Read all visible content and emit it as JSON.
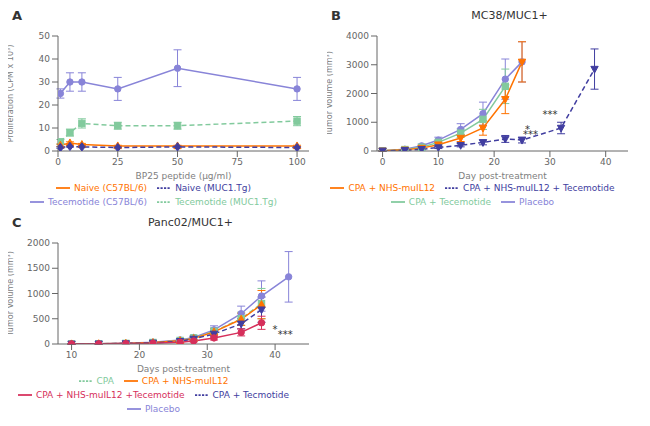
{
  "chart_data": [
    {
      "type": "line",
      "annotations": [
        {
          "text": "A"
        }
      ],
      "xlabel": "BP25 peptide (μg/ml)",
      "ylabel": "Proliferation (CPM x 10³)",
      "xlim": [
        0,
        105
      ],
      "ylim": [
        0,
        50
      ],
      "xticks": [
        0,
        25,
        50,
        75,
        100
      ],
      "yticks": [
        0,
        10,
        20,
        30,
        40,
        50
      ],
      "grid": false,
      "legend": "bottom",
      "series": [
        {
          "name": "Tecemotide (C57BL/6)",
          "color": "#8884d8",
          "marker": "circle",
          "line_style": "solid",
          "x": [
            1,
            5,
            10,
            25,
            50,
            100
          ],
          "values": [
            25,
            30,
            30,
            27,
            36,
            27
          ],
          "yerr": [
            2,
            4,
            4,
            5,
            8,
            5
          ]
        },
        {
          "name": "Tecemotide (MUC1.Tg)",
          "color": "#82ca9d",
          "marker": "square",
          "line_style": "dashed",
          "x": [
            1,
            5,
            10,
            25,
            50,
            100
          ],
          "values": [
            4,
            8,
            12,
            11,
            11,
            13
          ],
          "yerr": [
            1,
            1.5,
            2,
            1.5,
            1.5,
            2
          ]
        },
        {
          "name": "Naive (C57BL/6)",
          "color": "#ff7300",
          "marker": "triangle",
          "line_style": "solid",
          "x": [
            1,
            5,
            10,
            25,
            50,
            100
          ],
          "values": [
            2.5,
            3.5,
            2.8,
            2.2,
            2.2,
            2.2
          ],
          "yerr": [
            0.5,
            0.5,
            0.5,
            0.3,
            0.3,
            0.3
          ]
        },
        {
          "name": "Naive (MUC1.Tg)",
          "color": "#413ea0",
          "marker": "diamond",
          "line_style": "dashed",
          "x": [
            1,
            5,
            10,
            25,
            50,
            100
          ],
          "values": [
            1.5,
            2,
            1.8,
            1.5,
            1.8,
            1.5
          ],
          "yerr": [
            0.3,
            0.3,
            0.3,
            0.2,
            0.3,
            0.3
          ]
        }
      ]
    },
    {
      "type": "line",
      "title": "MC38/MUC1+",
      "annotations": [
        {
          "text": "B"
        },
        {
          "text": "*",
          "x": 26,
          "y": 560
        },
        {
          "text": "***",
          "x": 26.5,
          "y": 410
        },
        {
          "text": "***",
          "x": 30,
          "y": 1080
        }
      ],
      "xlabel": "Day post-treatment",
      "ylabel": "Tumor Volume (mm³)",
      "xlim": [
        -1,
        44
      ],
      "ylim": [
        0,
        4000
      ],
      "xticks": [
        0,
        10,
        20,
        30,
        40
      ],
      "yticks": [
        0,
        1000,
        2000,
        3000,
        4000
      ],
      "grid": false,
      "legend": "bottom",
      "series": [
        {
          "name": "Placebo",
          "color": "#8884d8",
          "marker": "circle",
          "line_style": "solid",
          "x": [
            0,
            4,
            7,
            10,
            14,
            18,
            22,
            25,
            32
          ],
          "values": [
            5,
            60,
            180,
            380,
            750,
            1300,
            2500,
            3100,
            null
          ],
          "yerr": [
            3,
            30,
            60,
            100,
            200,
            400,
            700,
            700,
            null
          ]
        },
        {
          "name": "CPA + Tecemotide",
          "color": "#82ca9d",
          "marker": "square",
          "line_style": "solid",
          "x": [
            0,
            4,
            7,
            10,
            14,
            18,
            22,
            25
          ],
          "values": [
            5,
            50,
            130,
            300,
            620,
            1100,
            2250,
            null
          ],
          "yerr": [
            3,
            25,
            50,
            80,
            150,
            350,
            600,
            null
          ]
        },
        {
          "name": "CPA + NHS-muIL12",
          "color": "#ff7300",
          "marker": "triangle-down",
          "line_style": "solid",
          "x": [
            0,
            4,
            7,
            10,
            14,
            18,
            22,
            25,
            32
          ],
          "values": [
            5,
            40,
            100,
            220,
            450,
            800,
            1800,
            3100,
            null
          ],
          "yerr": [
            3,
            20,
            40,
            60,
            120,
            250,
            500,
            700,
            null
          ]
        },
        {
          "name": "CPA + NHS-muIL12 + Tecemotide",
          "color": "#413ea0",
          "marker": "triangle-down",
          "line_style": "dashed",
          "x": [
            0,
            4,
            7,
            10,
            14,
            18,
            22,
            25,
            32,
            38,
            42
          ],
          "values": [
            5,
            25,
            60,
            120,
            200,
            300,
            420,
            380,
            800,
            2850,
            null
          ],
          "yerr": [
            3,
            12,
            20,
            35,
            55,
            85,
            120,
            100,
            200,
            700,
            null
          ]
        }
      ]
    },
    {
      "type": "line",
      "title": "Panc02/MUC1+",
      "annotations": [
        {
          "text": "C"
        },
        {
          "text": "*",
          "x": 40,
          "y": 185
        },
        {
          "text": "***",
          "x": 41.5,
          "y": 90
        }
      ],
      "xlabel": "Days post-treatment",
      "ylabel": "Tumor Volume (mm³)",
      "xlim": [
        8,
        45
      ],
      "ylim": [
        0,
        2000
      ],
      "xticks": [
        10,
        20,
        30,
        40
      ],
      "yticks": [
        0,
        500,
        1000,
        1500,
        2000
      ],
      "grid": false,
      "legend": "bottom",
      "series": [
        {
          "name": "Placebo",
          "color": "#8884d8",
          "marker": "circle",
          "line_style": "solid",
          "x": [
            10,
            14,
            18,
            22,
            26,
            28,
            31,
            35,
            38,
            42
          ],
          "values": [
            2,
            5,
            15,
            35,
            80,
            130,
            280,
            600,
            950,
            1330
          ],
          "yerr": [
            1,
            2,
            5,
            10,
            20,
            40,
            80,
            150,
            300,
            500
          ]
        },
        {
          "name": "CPA",
          "color": "#82ca9d",
          "marker": "square",
          "line_style": "dashed",
          "x": [
            10,
            14,
            18,
            22,
            26,
            28,
            31,
            35,
            38,
            42
          ],
          "values": [
            2,
            5,
            12,
            30,
            70,
            120,
            250,
            500,
            800,
            null
          ],
          "yerr": [
            1,
            2,
            4,
            8,
            18,
            35,
            70,
            130,
            300,
            null
          ]
        },
        {
          "name": "CPA + NHS-muIL12",
          "color": "#ff7300",
          "marker": "triangle",
          "line_style": "solid",
          "x": [
            10,
            14,
            18,
            22,
            26,
            28,
            31,
            35,
            38,
            42
          ],
          "values": [
            2,
            5,
            12,
            28,
            65,
            110,
            240,
            490,
            780,
            null
          ],
          "yerr": [
            1,
            2,
            4,
            8,
            18,
            32,
            65,
            120,
            280,
            null
          ]
        },
        {
          "name": "CPA + Tecmotide",
          "color": "#413ea0",
          "marker": "triangle-down",
          "line_style": "dashed",
          "x": [
            10,
            14,
            18,
            22,
            26,
            28,
            31,
            35,
            38,
            42
          ],
          "values": [
            2,
            4,
            10,
            22,
            55,
            100,
            200,
            400,
            680,
            null
          ],
          "yerr": [
            1,
            2,
            3,
            7,
            15,
            30,
            60,
            100,
            250,
            null
          ]
        },
        {
          "name": "CPA + NHS-muIL12 +Tecemotide",
          "color": "#d62f5b",
          "marker": "circle",
          "line_style": "solid",
          "x": [
            10,
            14,
            18,
            22,
            26,
            28,
            31,
            35,
            38,
            42
          ],
          "values": [
            2,
            3,
            8,
            15,
            35,
            60,
            120,
            230,
            420,
            null
          ],
          "yerr": [
            1,
            1,
            3,
            5,
            10,
            18,
            40,
            70,
            130,
            null
          ]
        }
      ]
    }
  ]
}
